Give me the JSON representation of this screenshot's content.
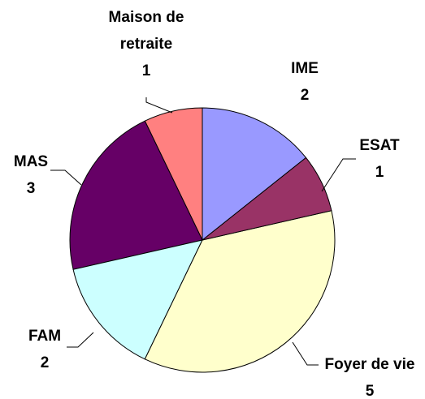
{
  "chart_data": {
    "type": "pie",
    "categories": [
      "IME",
      "ESAT",
      "Foyer de vie",
      "FAM",
      "MAS",
      "Maison de retraite"
    ],
    "values": [
      2,
      1,
      5,
      2,
      3,
      1
    ],
    "colors": [
      "#9999ff",
      "#993366",
      "#ffffcc",
      "#ccffff",
      "#660066",
      "#ff8080"
    ]
  }
}
